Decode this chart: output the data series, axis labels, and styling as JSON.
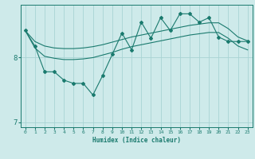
{
  "xlabel": "Humidex (Indice chaleur)",
  "background_color": "#ceeaea",
  "line_color": "#1a7a6e",
  "grid_color": "#a8d4d4",
  "x": [
    0,
    1,
    2,
    3,
    4,
    5,
    6,
    7,
    8,
    9,
    10,
    11,
    12,
    13,
    14,
    15,
    16,
    17,
    18,
    19,
    20,
    21,
    22,
    23
  ],
  "y_main": [
    8.42,
    8.18,
    7.78,
    7.78,
    7.65,
    7.6,
    7.6,
    7.42,
    7.72,
    8.05,
    8.38,
    8.12,
    8.55,
    8.3,
    8.62,
    8.42,
    8.68,
    8.68,
    8.55,
    8.62,
    8.32,
    8.25,
    8.25,
    8.25
  ],
  "y_upper": [
    8.42,
    8.25,
    8.18,
    8.15,
    8.14,
    8.14,
    8.15,
    8.17,
    8.2,
    8.24,
    8.28,
    8.32,
    8.35,
    8.38,
    8.41,
    8.44,
    8.47,
    8.5,
    8.52,
    8.54,
    8.54,
    8.45,
    8.32,
    8.26
  ],
  "y_lower": [
    8.42,
    8.15,
    8.02,
    7.99,
    7.97,
    7.97,
    7.98,
    8.0,
    8.04,
    8.08,
    8.13,
    8.17,
    8.2,
    8.23,
    8.26,
    8.29,
    8.32,
    8.35,
    8.37,
    8.39,
    8.39,
    8.3,
    8.18,
    8.12
  ],
  "ylim": [
    6.92,
    8.82
  ],
  "xlim": [
    -0.5,
    23.5
  ],
  "yticks": [
    7,
    8
  ],
  "xticks": [
    0,
    1,
    2,
    3,
    4,
    5,
    6,
    7,
    8,
    9,
    10,
    11,
    12,
    13,
    14,
    15,
    16,
    17,
    18,
    19,
    20,
    21,
    22,
    23
  ]
}
